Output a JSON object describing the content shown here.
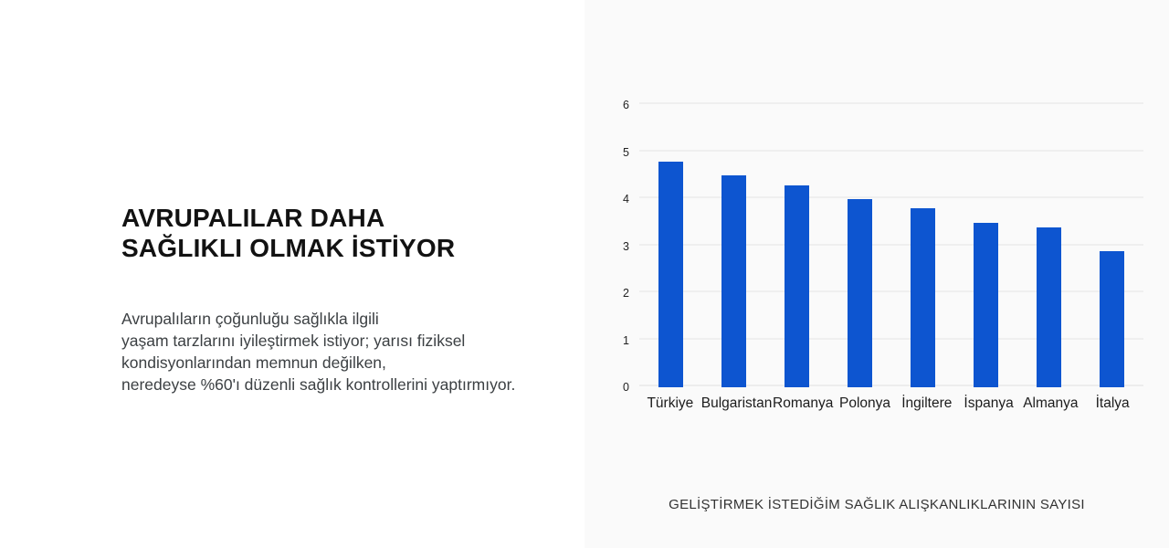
{
  "left_panel": {
    "heading_line1": "AVRUPALILAR DAHA",
    "heading_line2": "SAĞLIKLI OLMAK İSTİYOR",
    "body_lines": [
      "Avrupalıların çoğunluğu sağlıkla ilgili",
      "yaşam tarzlarını iyileştirmek istiyor; yarısı fiziksel",
      "kondisyonlarından memnun değilken,",
      "neredeyse %60'ı düzenli sağlık kontrollerini yaptırmıyor."
    ]
  },
  "chart_data": {
    "type": "bar",
    "categories": [
      "Türkiye",
      "Bulgaristan",
      "Romanya",
      "Polonya",
      "İngiltere",
      "İspanya",
      "Almanya",
      "İtalya"
    ],
    "values": [
      4.8,
      4.5,
      4.3,
      4.0,
      3.8,
      3.5,
      3.4,
      2.9
    ],
    "title": "",
    "xlabel": "",
    "ylabel": "",
    "ylim": [
      0,
      6
    ],
    "yticks": [
      0,
      1,
      2,
      3,
      4,
      5,
      6
    ],
    "grid": true,
    "legend": false,
    "bar_color": "#0d55d0",
    "background_color": "#fafafa",
    "caption": "GELİŞTİRMEK İSTEDİĞİM SAĞLIK ALIŞKANLIKLARININ SAYISI"
  }
}
